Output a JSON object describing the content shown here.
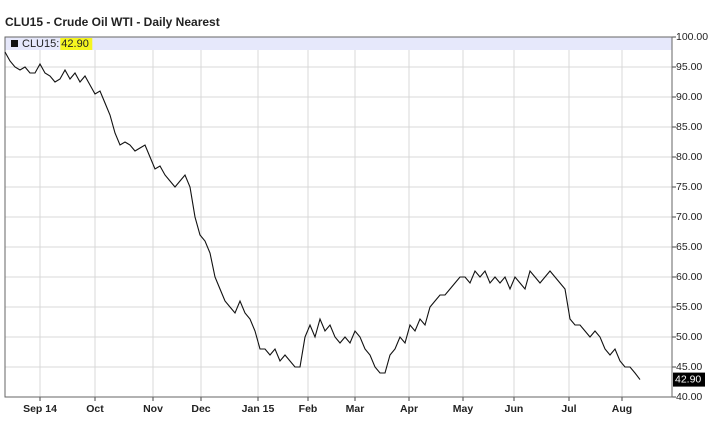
{
  "chart_data": {
    "type": "line",
    "title": "CLU15 - Crude Oil WTI - Daily Nearest",
    "series": [
      {
        "name": "CLU15:",
        "color": "#111111",
        "values": [
          97.5,
          96,
          95,
          94.5,
          95,
          94,
          94,
          95.5,
          94,
          93.5,
          92.5,
          93,
          94.5,
          93,
          94,
          92.5,
          93.5,
          92,
          90.5,
          91,
          89,
          87,
          84,
          82,
          82.5,
          82,
          81,
          81.5,
          82,
          80,
          78,
          78.5,
          77,
          76,
          75,
          76,
          77,
          75,
          70,
          67,
          66,
          64,
          60,
          58,
          56,
          55,
          54,
          56,
          54,
          53,
          51,
          48,
          48,
          47,
          48,
          46,
          47,
          46,
          45,
          45,
          50,
          52,
          50,
          53,
          51,
          52,
          50,
          49,
          50,
          49,
          51,
          50,
          48,
          47,
          45,
          44,
          44,
          47,
          48,
          50,
          49,
          52,
          51,
          53,
          52,
          55,
          56,
          57,
          57,
          58,
          59,
          60,
          60,
          59,
          61,
          60,
          61,
          59,
          60,
          59,
          60,
          58,
          60,
          59,
          58,
          61,
          60,
          59,
          60,
          61,
          60,
          59,
          58,
          53,
          52,
          52,
          51,
          50,
          51,
          50,
          48,
          47,
          48,
          46,
          45,
          45,
          44,
          42.9
        ],
        "last_value": 42.9,
        "last_value_label": "42.90"
      }
    ],
    "xlim": [
      0,
      133.4
    ],
    "xticks": [
      {
        "value": 7,
        "label": "Sep 14"
      },
      {
        "value": 18,
        "label": "Oct"
      },
      {
        "value": 29.6,
        "label": "Nov"
      },
      {
        "value": 39.2,
        "label": "Dec"
      },
      {
        "value": 50.6,
        "label": "Jan 15"
      },
      {
        "value": 60.6,
        "label": "Feb"
      },
      {
        "value": 70,
        "label": "Mar"
      },
      {
        "value": 80.8,
        "label": "Apr"
      },
      {
        "value": 91.6,
        "label": "May"
      },
      {
        "value": 101.8,
        "label": "Jun"
      },
      {
        "value": 112.8,
        "label": "Jul"
      },
      {
        "value": 123.4,
        "label": "Aug"
      }
    ],
    "ylim": [
      40,
      100
    ],
    "yticks": [
      {
        "value": 40,
        "label": "40.00"
      },
      {
        "value": 45,
        "label": "45.00"
      },
      {
        "value": 50,
        "label": "50.00"
      },
      {
        "value": 55,
        "label": "55.00"
      },
      {
        "value": 60,
        "label": "60.00"
      },
      {
        "value": 65,
        "label": "65.00"
      },
      {
        "value": 70,
        "label": "70.00"
      },
      {
        "value": 75,
        "label": "75.00"
      },
      {
        "value": 80,
        "label": "80.00"
      },
      {
        "value": 85,
        "label": "85.00"
      },
      {
        "value": 90,
        "label": "90.00"
      },
      {
        "value": 95,
        "label": "95.00"
      },
      {
        "value": 100,
        "label": "100.00"
      }
    ],
    "grid": true,
    "legend": "top-left"
  }
}
